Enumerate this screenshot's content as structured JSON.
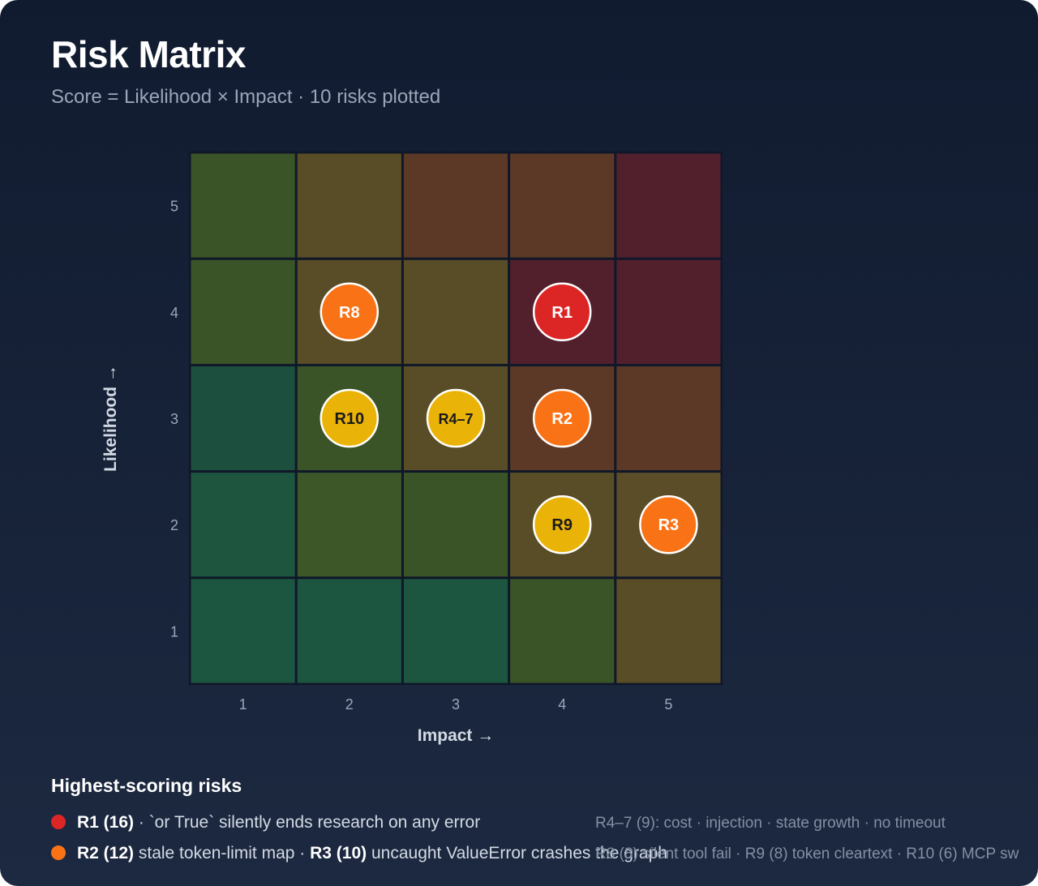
{
  "header": {
    "title": "Risk Matrix",
    "subtitle": "Score = Likelihood × Impact · 10 risks plotted"
  },
  "chart_data": {
    "type": "heatmap",
    "xlabel": "Impact →",
    "ylabel": "Likelihood →",
    "x_ticks": [
      "1",
      "2",
      "3",
      "4",
      "5"
    ],
    "y_ticks": [
      "1",
      "2",
      "3",
      "4",
      "5"
    ],
    "cell_colors": {
      "5": [
        "#3a5428",
        "#594d27",
        "#5b3926",
        "#5b3926",
        "#521f2d"
      ],
      "4": [
        "#3a5428",
        "#594d27",
        "#594d27",
        "#521f2d",
        "#521f2d"
      ],
      "3": [
        "#1d4f3f",
        "#3a5428",
        "#594d27",
        "#5b3926",
        "#5b3926"
      ],
      "2": [
        "#1d553f",
        "#3d5729",
        "#3a5428",
        "#594d27",
        "#5a4d28"
      ],
      "1": [
        "#1c5640",
        "#1c5640",
        "#1c5640",
        "#3a5428",
        "#594d27"
      ]
    },
    "markers": [
      {
        "label": "R8",
        "impact": 2,
        "likelihood": 4,
        "color": "#f97316",
        "text_color": "#ffffff"
      },
      {
        "label": "R1",
        "impact": 4,
        "likelihood": 4,
        "color": "#dc2626",
        "text_color": "#ffffff"
      },
      {
        "label": "R10",
        "impact": 2,
        "likelihood": 3,
        "color": "#eab308",
        "text_color": "#1a1a1a"
      },
      {
        "label": "R4–7",
        "impact": 3,
        "likelihood": 3,
        "color": "#eab308",
        "text_color": "#1a1a1a"
      },
      {
        "label": "R2",
        "impact": 4,
        "likelihood": 3,
        "color": "#f97316",
        "text_color": "#ffffff"
      },
      {
        "label": "R9",
        "impact": 4,
        "likelihood": 2,
        "color": "#eab308",
        "text_color": "#1a1a1a"
      },
      {
        "label": "R3",
        "impact": 5,
        "likelihood": 2,
        "color": "#f97316",
        "text_color": "#ffffff"
      }
    ]
  },
  "legend": {
    "title": "Highest-scoring risks",
    "rows": [
      {
        "color": "#dc2626",
        "r1_id": "R1 (16)",
        "r1_text": " · `or True` silently ends research on any error"
      },
      {
        "color": "#f97316",
        "r2_id": "R2 (12)",
        "r2_text": " stale token-limit map · ",
        "r3_id": "R3 (10)",
        "r3_text": " uncaught ValueError crashes the graph"
      }
    ],
    "notes": [
      "R4–7 (9): cost · injection · state growth · no timeout",
      "R8 (8) silent tool fail · R9 (8) token cleartext · R10 (6) MCP sw"
    ]
  }
}
